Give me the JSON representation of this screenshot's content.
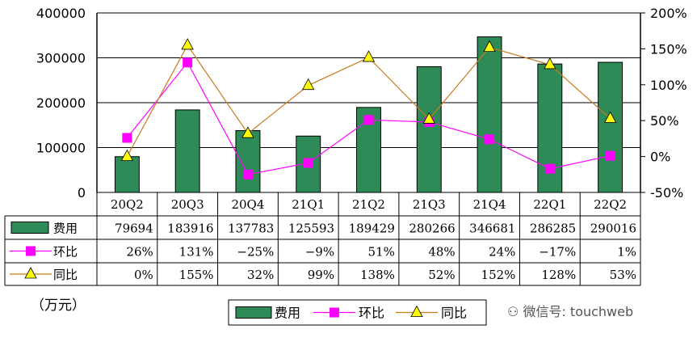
{
  "chart_data": {
    "type": "bar",
    "categories": [
      "20Q2",
      "20Q3",
      "20Q4",
      "21Q1",
      "21Q2",
      "21Q3",
      "21Q4",
      "22Q1",
      "22Q2"
    ],
    "series": [
      {
        "name": "费用",
        "kind": "bar",
        "axis": "left",
        "values": [
          79694,
          183916,
          137783,
          125593,
          189429,
          280266,
          346681,
          286285,
          290016
        ],
        "labels": [
          "79694",
          "183916",
          "137783",
          "125593",
          "189429",
          "280266",
          "346681",
          "286285",
          "290016"
        ],
        "color": "#2e8b57"
      },
      {
        "name": "环比",
        "kind": "line",
        "axis": "right",
        "values": [
          26,
          131,
          -25,
          -9,
          51,
          48,
          24,
          -17,
          1
        ],
        "labels": [
          "26%",
          "131%",
          "−25%",
          "−9%",
          "51%",
          "48%",
          "24%",
          "−17%",
          "1%"
        ],
        "color": "#ff00ff"
      },
      {
        "name": "同比",
        "kind": "line",
        "axis": "right",
        "values": [
          0,
          155,
          32,
          99,
          138,
          52,
          152,
          128,
          53
        ],
        "labels": [
          "0%",
          "155%",
          "32%",
          "99%",
          "138%",
          "52%",
          "152%",
          "128%",
          "53%"
        ],
        "color": "#ffff00",
        "line_color": "#c87a1e"
      }
    ],
    "left_axis": {
      "ylim": [
        0,
        400000
      ],
      "ticks": [
        "0",
        "100000",
        "200000",
        "300000",
        "400000"
      ]
    },
    "right_axis": {
      "ylim": [
        -50,
        200
      ],
      "ticks": [
        "-50%",
        "0%",
        "50%",
        "100%",
        "150%",
        "200%"
      ]
    },
    "unit_label": "（万元）",
    "legend": [
      "费用",
      "环比",
      "同比"
    ],
    "watermark": "微信号: touchweb"
  }
}
